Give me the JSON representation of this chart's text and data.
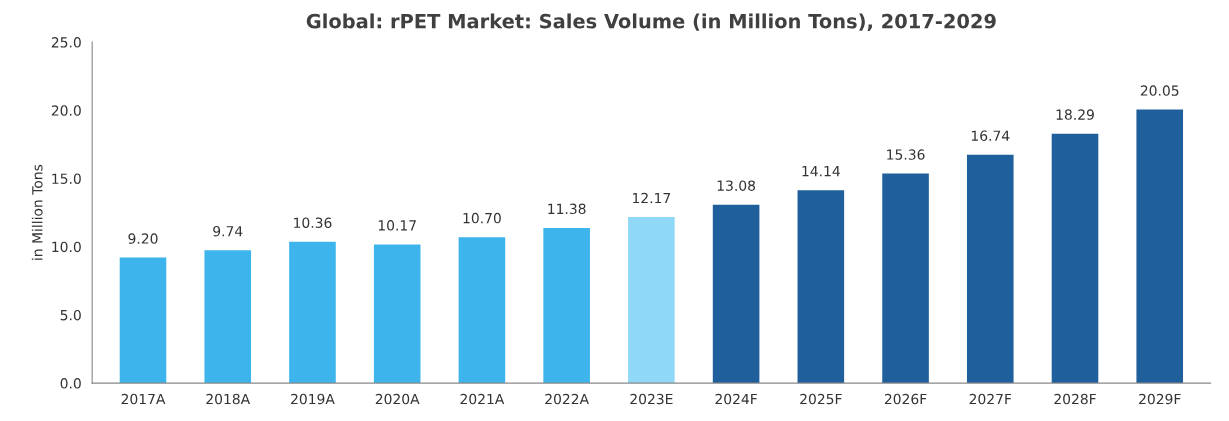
{
  "chart_data": {
    "type": "bar",
    "title": "Global: rPET Market: Sales Volume (in Million Tons), 2017-2029",
    "ylabel": "in Million Tons",
    "categories": [
      "2017A",
      "2018A",
      "2019A",
      "2020A",
      "2021A",
      "2022A",
      "2023E",
      "2024F",
      "2025F",
      "2026F",
      "2027F",
      "2028F",
      "2029F"
    ],
    "values": [
      9.2,
      9.74,
      10.36,
      10.17,
      10.7,
      11.38,
      12.17,
      13.08,
      14.14,
      15.36,
      16.74,
      18.29,
      20.05
    ],
    "colors": [
      "#3db5ec",
      "#3db5ec",
      "#3db5ec",
      "#3db5ec",
      "#3db5ec",
      "#3db5ec",
      "#8fd9f6",
      "#1f5f9c",
      "#1f5f9c",
      "#1f5f9c",
      "#1f5f9c",
      "#1f5f9c",
      "#1f5f9c"
    ],
    "value_labels": [
      "9.20",
      "9.74",
      "10.36",
      "10.17",
      "10.70",
      "11.38",
      "12.17",
      "13.08",
      "14.14",
      "15.36",
      "16.74",
      "18.29",
      "20.05"
    ],
    "ylim": [
      0,
      25
    ],
    "yticks": [
      {
        "value": 0,
        "label": "0.0"
      },
      {
        "value": 5,
        "label": "5.0"
      },
      {
        "value": 10,
        "label": "10.0"
      },
      {
        "value": 15,
        "label": "15.0"
      },
      {
        "value": 20,
        "label": "20.0"
      },
      {
        "value": 25,
        "label": "25.0"
      }
    ],
    "grid": false,
    "legend": false
  }
}
